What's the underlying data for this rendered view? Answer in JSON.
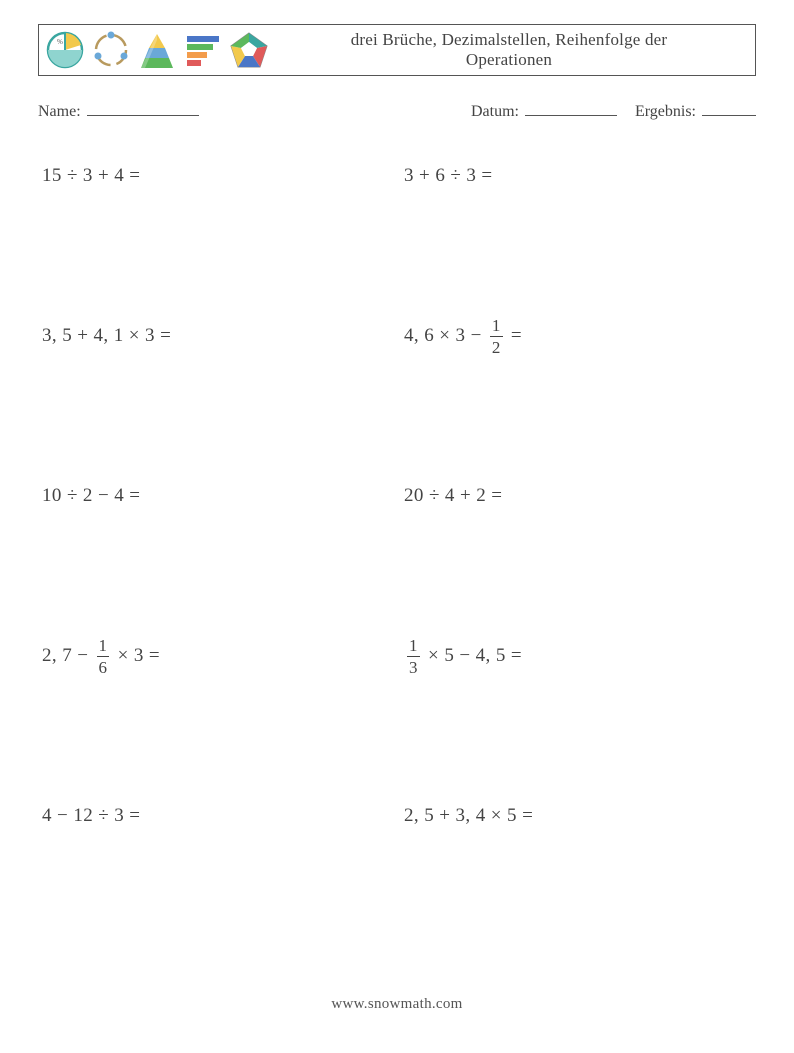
{
  "header": {
    "title_line1": "drei Brüche, Dezimalstellen, Reihenfolge der",
    "title_line2": "Operationen"
  },
  "meta": {
    "name_label": "Name:",
    "date_label": "Datum:",
    "result_label": "Ergebnis:"
  },
  "icons": {
    "pie_stroke": "#3aa6a0",
    "pie_fill": "#8fd4cf",
    "pie_slice": "#f2c94c",
    "cycle_stroke": "#b89a5e",
    "cycle_accent": "#6aa8d8",
    "pyr_yellow": "#f2c94c",
    "pyr_blue": "#6aa8d8",
    "pyr_green": "#5cb85c",
    "bars_blue": "#4a76c7",
    "bars_green": "#5cb85c",
    "bars_orange": "#f39c4b",
    "bars_red": "#e05a5a",
    "pent_teal": "#3aa6a0",
    "pent_red": "#e05a5a",
    "pent_blue": "#4a76c7",
    "pent_yellow": "#f2c94c",
    "pent_green": "#5cb85c"
  },
  "problems": [
    {
      "type": "plain",
      "text": "15 ÷ 3 + 4 ="
    },
    {
      "type": "plain",
      "text": "3 + 6 ÷ 3 ="
    },
    {
      "type": "plain",
      "text": "3, 5 + 4, 1 × 3 ="
    },
    {
      "type": "frac_after",
      "before": "4, 6 × 3 − ",
      "num": "1",
      "den": "2",
      "after": " ="
    },
    {
      "type": "plain",
      "text": "10 ÷ 2 − 4 ="
    },
    {
      "type": "plain",
      "text": "20 ÷ 4 + 2 ="
    },
    {
      "type": "frac_after",
      "before": "2, 7 − ",
      "num": "1",
      "den": "6",
      "after": " × 3 ="
    },
    {
      "type": "frac_before",
      "num": "1",
      "den": "3",
      "after": " × 5 − 4, 5 ="
    },
    {
      "type": "plain",
      "text": "4 − 12 ÷ 3 ="
    },
    {
      "type": "plain",
      "text": "2, 5 + 3, 4 × 5 ="
    }
  ],
  "footer": "www.snowmath.com",
  "layout": {
    "blank_name_w": 112,
    "blank_date_w": 92,
    "blank_result_w": 54
  }
}
